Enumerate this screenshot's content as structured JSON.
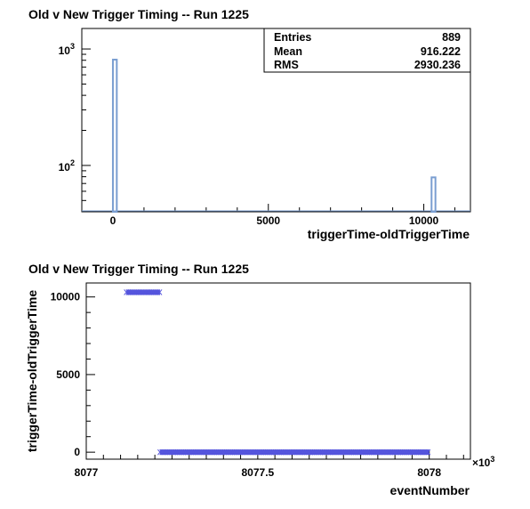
{
  "charts": [
    {
      "title": "Old v New Trigger Timing -- Run 1225",
      "stats": [
        {
          "label": "Entries",
          "value": "889"
        },
        {
          "label": "Mean",
          "value": "916.222"
        },
        {
          "label": "RMS",
          "value": "2930.236"
        }
      ],
      "xlabel": "triggerTime-oldTriggerTime",
      "x_ticks": [
        "0",
        "5000",
        "10000"
      ],
      "y_ticks": [
        "10",
        "10"
      ],
      "y_tick_exponents": [
        "3",
        "2"
      ]
    },
    {
      "title": "Old v New Trigger Timing -- Run 1225",
      "ylabel": "triggerTime-oldTriggerTime",
      "xlabel": "eventNumber",
      "x_ticks": [
        "8077",
        "8077.5",
        "8078"
      ],
      "x_multiplier": "×10",
      "x_multiplier_exp": "3",
      "y_ticks": [
        "0",
        "5000",
        "10000"
      ]
    }
  ],
  "chart_data": [
    {
      "type": "bar",
      "title": "Old v New Trigger Timing -- Run 1225",
      "xlabel": "triggerTime-oldTriggerTime",
      "ylabel": "",
      "xlim": [
        -1000,
        11500
      ],
      "ylim": [
        40,
        1500
      ],
      "yscale": "log",
      "bars": [
        {
          "x0": 0,
          "x1": 125,
          "value": 810
        },
        {
          "x0": 10250,
          "x1": 10375,
          "value": 79
        }
      ],
      "series_color": "#7a9ed1",
      "grid": false,
      "stats_box": "top-right"
    },
    {
      "type": "scatter",
      "title": "Old v New Trigger Timing -- Run 1225",
      "xlabel": "eventNumber",
      "ylabel": "triggerTime-oldTriggerTime",
      "xlim": [
        8077.0,
        8078.12
      ],
      "ylim": [
        -450,
        10900
      ],
      "series": [
        {
          "x_range": [
            8077.117,
            8077.215
          ],
          "y": 10300
        },
        {
          "x_range": [
            8077.215,
            8078.0
          ],
          "y": 0
        }
      ],
      "series_color": "#5555dd",
      "grid": false
    }
  ]
}
